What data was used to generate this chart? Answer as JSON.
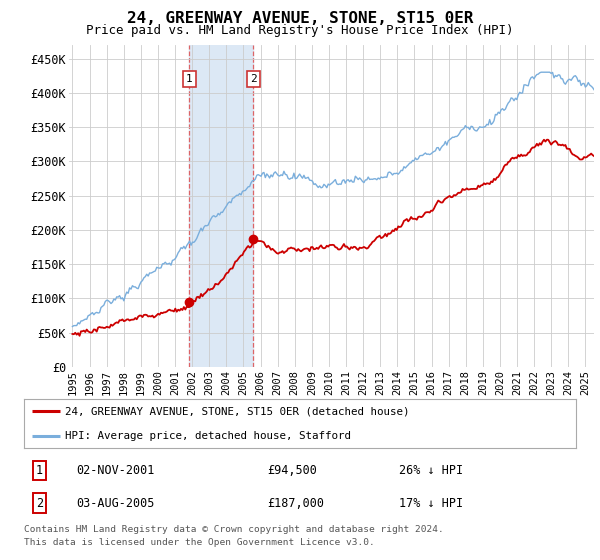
{
  "title": "24, GREENWAY AVENUE, STONE, ST15 0ER",
  "subtitle": "Price paid vs. HM Land Registry's House Price Index (HPI)",
  "ylabel_ticks": [
    "£0",
    "£50K",
    "£100K",
    "£150K",
    "£200K",
    "£250K",
    "£300K",
    "£350K",
    "£400K",
    "£450K"
  ],
  "ylabel_values": [
    0,
    50000,
    100000,
    150000,
    200000,
    250000,
    300000,
    350000,
    400000,
    450000
  ],
  "ylim": [
    0,
    470000
  ],
  "xlim_start": 1994.8,
  "xlim_end": 2025.5,
  "transaction1": {
    "date": 2001.84,
    "price": 94500,
    "label": "1",
    "text": "02-NOV-2001",
    "amount": "£94,500",
    "hpi_diff": "26% ↓ HPI"
  },
  "transaction2": {
    "date": 2005.58,
    "price": 187000,
    "label": "2",
    "text": "03-AUG-2005",
    "amount": "£187,000",
    "hpi_diff": "17% ↓ HPI"
  },
  "legend_line1": "24, GREENWAY AVENUE, STONE, ST15 0ER (detached house)",
  "legend_line2": "HPI: Average price, detached house, Stafford",
  "footer1": "Contains HM Land Registry data © Crown copyright and database right 2024.",
  "footer2": "This data is licensed under the Open Government Licence v3.0.",
  "line_red": "#cc0000",
  "line_blue": "#7aaedc",
  "shading_color": "#dce8f5",
  "vline_color": "#dd4444",
  "grid_color": "#cccccc",
  "bg_color": "#ffffff"
}
